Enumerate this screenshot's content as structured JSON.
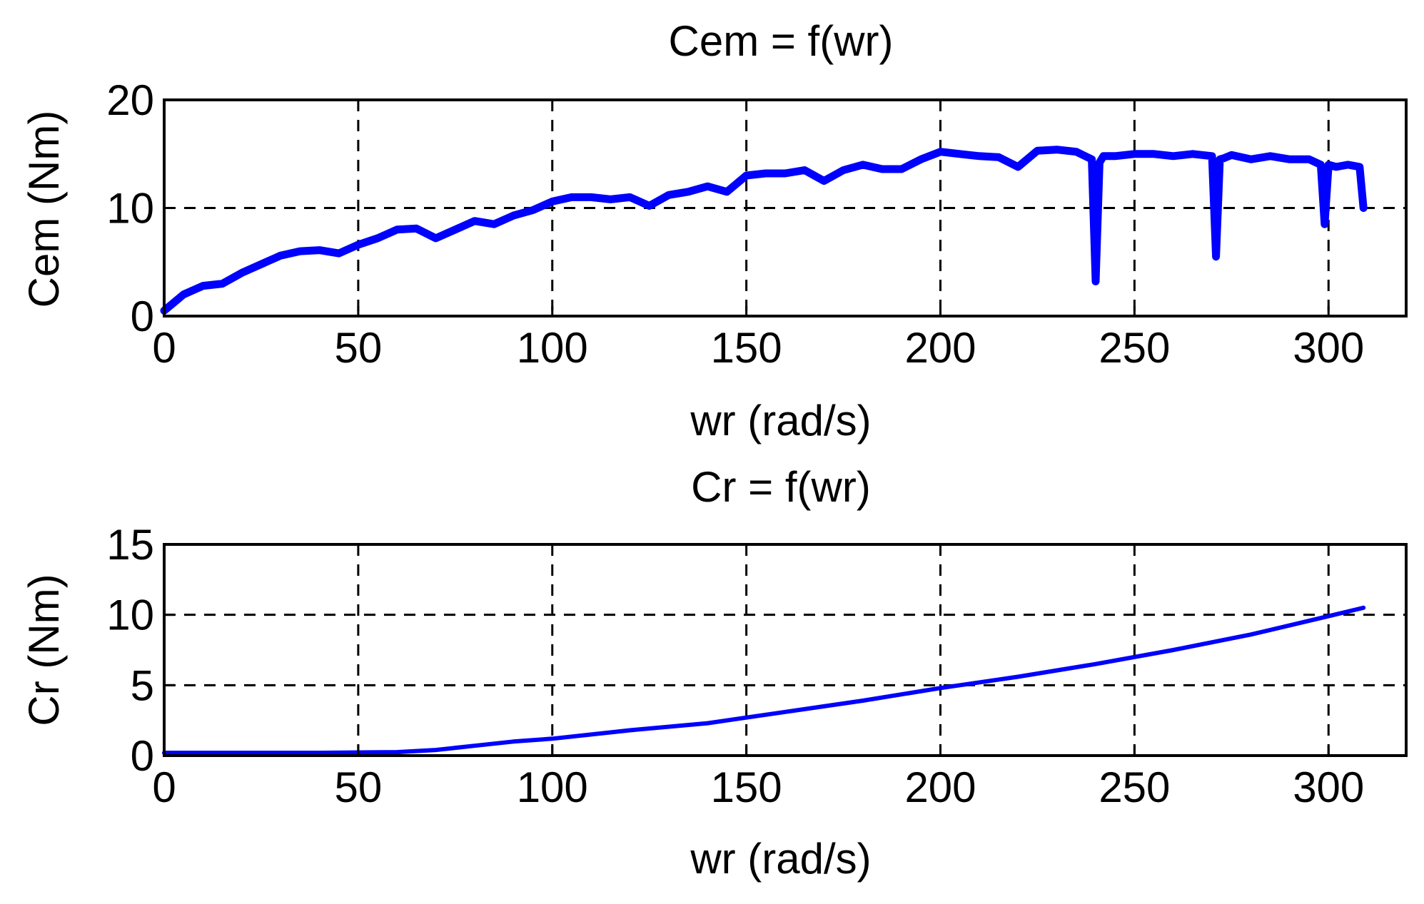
{
  "chart_data": [
    {
      "type": "line",
      "title": "Cem = f(wr)",
      "xlabel": "wr (rad/s)",
      "ylabel": "Cem (Nm)",
      "xlim": [
        0,
        320
      ],
      "ylim": [
        0,
        20
      ],
      "xticks": [
        0,
        50,
        100,
        150,
        200,
        250,
        300
      ],
      "yticks": [
        0,
        10,
        20
      ],
      "grid": true,
      "color": "#0000ff",
      "series": [
        {
          "x": [
            0,
            5,
            10,
            15,
            20,
            25,
            30,
            35,
            40,
            45,
            50,
            55,
            60,
            65,
            70,
            75,
            80,
            85,
            90,
            95,
            100,
            105,
            110,
            115,
            120,
            125,
            130,
            135,
            140,
            145,
            150,
            155,
            160,
            165,
            170,
            175,
            180,
            185,
            190,
            195,
            200,
            205,
            210,
            215,
            220,
            225,
            230,
            235,
            239,
            240,
            241,
            242,
            245,
            250,
            255,
            260,
            265,
            270,
            271,
            272,
            273,
            275,
            280,
            285,
            290,
            295,
            298,
            299,
            300,
            302,
            305,
            308,
            309
          ],
          "y": [
            0.5,
            2,
            2.8,
            3,
            4,
            4.8,
            5.6,
            6,
            6.1,
            5.8,
            6.6,
            7.2,
            8,
            8.1,
            7.2,
            8,
            8.8,
            8.5,
            9.3,
            9.8,
            10.6,
            11,
            11,
            10.8,
            11,
            10.2,
            11.2,
            11.5,
            12,
            11.5,
            13,
            13.2,
            13.2,
            13.5,
            12.5,
            13.5,
            14,
            13.6,
            13.6,
            14.5,
            15.2,
            15,
            14.8,
            14.7,
            13.8,
            15.3,
            15.4,
            15.2,
            14.5,
            3.2,
            14.2,
            14.8,
            14.8,
            15,
            15,
            14.8,
            15,
            14.8,
            5.5,
            14.5,
            14.6,
            14.9,
            14.5,
            14.8,
            14.5,
            14.5,
            14,
            8.5,
            14,
            13.8,
            14,
            13.8,
            10
          ]
        }
      ]
    },
    {
      "type": "line",
      "title": "Cr = f(wr)",
      "xlabel": "wr (rad/s)",
      "ylabel": "Cr (Nm)",
      "xlim": [
        0,
        320
      ],
      "ylim": [
        0,
        15
      ],
      "xticks": [
        0,
        50,
        100,
        150,
        200,
        250,
        300
      ],
      "yticks": [
        0,
        5,
        10,
        15
      ],
      "grid": true,
      "color": "#0000ff",
      "series": [
        {
          "x": [
            0,
            20,
            40,
            60,
            70,
            80,
            90,
            100,
            120,
            140,
            160,
            180,
            200,
            220,
            240,
            260,
            280,
            300,
            309
          ],
          "y": [
            0.2,
            0.2,
            0.2,
            0.25,
            0.4,
            0.7,
            1,
            1.2,
            1.8,
            2.3,
            3.1,
            3.9,
            4.8,
            5.6,
            6.5,
            7.5,
            8.6,
            9.9,
            10.5
          ]
        }
      ]
    }
  ]
}
